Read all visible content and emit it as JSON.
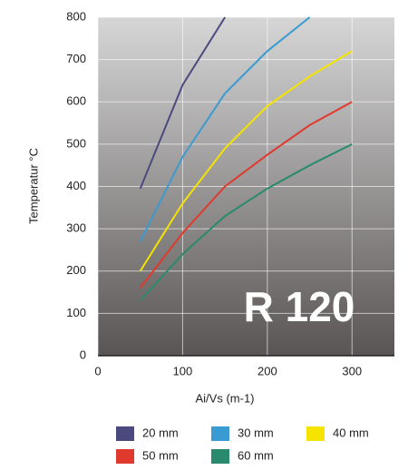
{
  "chart_data": {
    "type": "line",
    "annotation": "R 120",
    "x_label": "Ai/Vs (m-1)",
    "y_label": "Temperatur °C",
    "x": [
      50,
      100,
      150,
      200,
      250,
      300
    ],
    "series": [
      {
        "name": "20 mm",
        "color": "#4b4a7e",
        "values": [
          395,
          640,
          800,
          null,
          null,
          null
        ]
      },
      {
        "name": "30 mm",
        "color": "#3a9bd3",
        "values": [
          270,
          470,
          620,
          720,
          800,
          null
        ]
      },
      {
        "name": "40 mm",
        "color": "#f5e300",
        "values": [
          200,
          360,
          490,
          590,
          660,
          720
        ]
      },
      {
        "name": "50 mm",
        "color": "#e03a2e",
        "values": [
          160,
          290,
          400,
          475,
          545,
          600
        ]
      },
      {
        "name": "60 mm",
        "color": "#2a8a6e",
        "values": [
          130,
          240,
          330,
          395,
          450,
          500
        ]
      }
    ],
    "xlim": [
      0,
      350
    ],
    "xticks": [
      0,
      100,
      200,
      300
    ],
    "ylim": [
      0,
      800
    ],
    "yticks": [
      0,
      100,
      200,
      300,
      400,
      500,
      600,
      700,
      800
    ],
    "grid": true
  }
}
